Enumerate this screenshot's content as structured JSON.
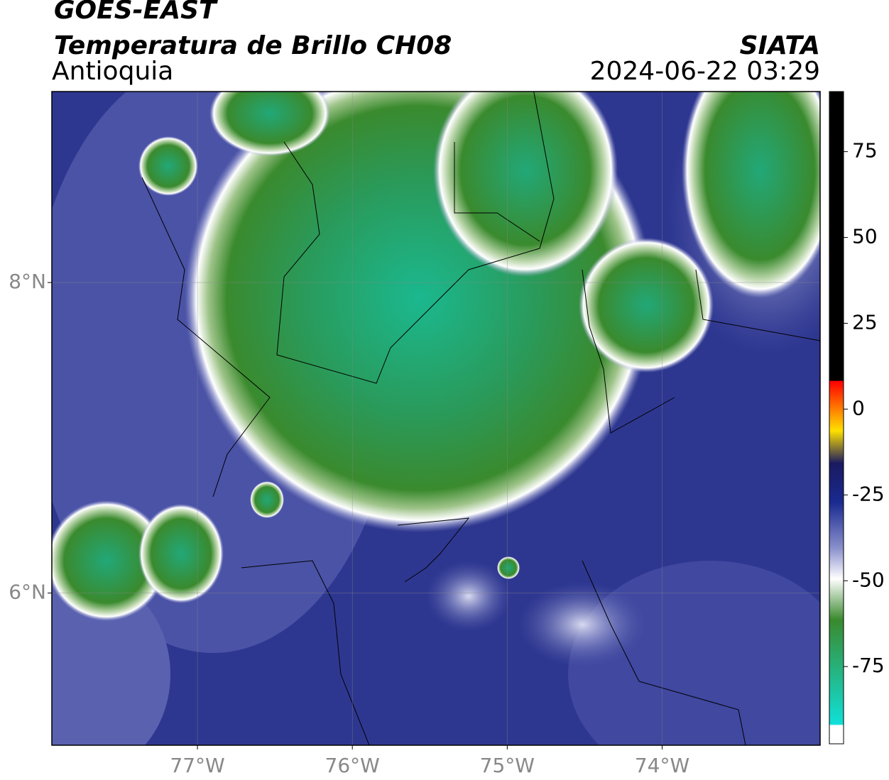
{
  "header": {
    "satellite": "GOES-EAST",
    "title": "Temperatura de Brillo CH08",
    "region": "Antioquia",
    "source": "SIATA",
    "datetime": "2024-06-22 03:29"
  },
  "map": {
    "lonlim": [
      -77.94,
      -72.98
    ],
    "latlim": [
      5.02,
      9.23
    ],
    "lon_ticks": [
      {
        "value": -77,
        "label": "77°W"
      },
      {
        "value": -76,
        "label": "76°W"
      },
      {
        "value": -75,
        "label": "75°W"
      },
      {
        "value": -74,
        "label": "74°W"
      }
    ],
    "lat_ticks": [
      {
        "value": 8,
        "label": "8°N"
      },
      {
        "value": 6,
        "label": "6°N"
      }
    ],
    "grid": true
  },
  "colorbar": {
    "lim": [
      -97.5,
      92.5
    ],
    "ticks": [
      75,
      50,
      25,
      0,
      -25,
      -50,
      -75
    ]
  }
}
